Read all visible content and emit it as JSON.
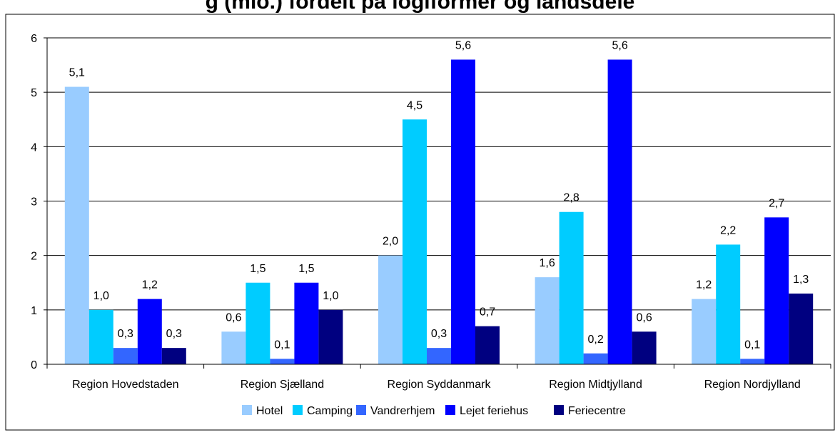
{
  "chart_data": {
    "type": "bar",
    "title": "g (mio.) fordelt på logiformer og landsdele",
    "categories": [
      "Region Hovedstaden",
      "Region Sjælland",
      "Region Syddanmark",
      "Region Midtjylland",
      "Region Nordjylland"
    ],
    "series": [
      {
        "name": "Hotel",
        "color": "#99ccff",
        "values": [
          5.1,
          0.6,
          2.0,
          1.6,
          1.2
        ],
        "labels": [
          "5,1",
          "0,6",
          "2,0",
          "1,6",
          "1,2"
        ]
      },
      {
        "name": "Camping",
        "color": "#00ccff",
        "values": [
          1.0,
          1.5,
          4.5,
          2.8,
          2.2
        ],
        "labels": [
          "1,0",
          "1,5",
          "4,5",
          "2,8",
          "2,2"
        ]
      },
      {
        "name": "Vandrerhjem",
        "color": "#3366ff",
        "values": [
          0.3,
          0.1,
          0.3,
          0.2,
          0.1
        ],
        "labels": [
          "0,3",
          "0,1",
          "0,3",
          "0,2",
          "0,1"
        ]
      },
      {
        "name": "Lejet feriehus",
        "color": "#0000ff",
        "values": [
          1.2,
          1.5,
          5.6,
          5.6,
          2.7
        ],
        "labels": [
          "1,2",
          "1,5",
          "5,6",
          "5,6",
          "2,7"
        ]
      },
      {
        "name": "Feriecentre",
        "color": "#000080",
        "values": [
          0.3,
          1.0,
          0.7,
          0.6,
          1.3
        ],
        "labels": [
          "0,3",
          "1,0",
          "0,7",
          "0,6",
          "1,3"
        ]
      }
    ],
    "ylim": [
      0,
      6
    ],
    "yticks": [
      "0",
      "1",
      "2",
      "3",
      "4",
      "5",
      "6"
    ],
    "grid": true,
    "legend_position": "bottom"
  }
}
